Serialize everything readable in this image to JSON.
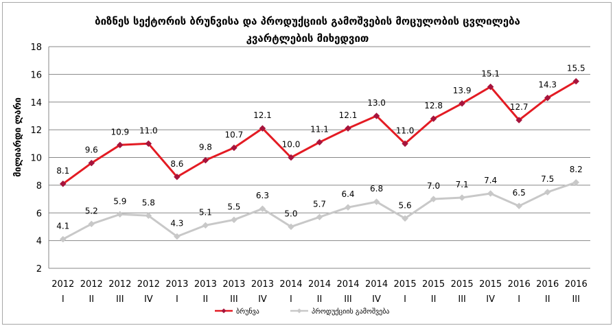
{
  "chart_data": {
    "type": "line",
    "title_line1": "ბიზნეს სექტორის ბრუნვისა და პროდუქციის გამოშვების მოცულობის ცვლილება",
    "title_line2": "კვარტლების მიხედვით",
    "ylabel": "მილიარდი ლარი",
    "xlabel": "",
    "ylim": [
      2,
      18
    ],
    "yticks": [
      2,
      4,
      6,
      8,
      10,
      12,
      14,
      16,
      18
    ],
    "grid": true,
    "legend_position": "bottom",
    "categories": [
      {
        "year": "2012",
        "quarter": "I"
      },
      {
        "year": "2012",
        "quarter": "II"
      },
      {
        "year": "2012",
        "quarter": "III"
      },
      {
        "year": "2012",
        "quarter": "IV"
      },
      {
        "year": "2013",
        "quarter": "I"
      },
      {
        "year": "2013",
        "quarter": "II"
      },
      {
        "year": "2013",
        "quarter": "III"
      },
      {
        "year": "2013",
        "quarter": "IV"
      },
      {
        "year": "2014",
        "quarter": "I"
      },
      {
        "year": "2014",
        "quarter": "II"
      },
      {
        "year": "2014",
        "quarter": "III"
      },
      {
        "year": "2014",
        "quarter": "IV"
      },
      {
        "year": "2015",
        "quarter": "I"
      },
      {
        "year": "2015",
        "quarter": "II"
      },
      {
        "year": "2015",
        "quarter": "III"
      },
      {
        "year": "2015",
        "quarter": "IV"
      },
      {
        "year": "2016",
        "quarter": "I"
      },
      {
        "year": "2016",
        "quarter": "II"
      },
      {
        "year": "2016",
        "quarter": "III"
      }
    ],
    "series": [
      {
        "name": "ბრუნვა",
        "color": "#e31b23",
        "marker_color": "#a6143c",
        "marker": "diamond",
        "values": [
          8.1,
          9.6,
          10.9,
          11.0,
          8.6,
          9.8,
          10.7,
          12.1,
          10.0,
          11.1,
          12.1,
          13.0,
          11.0,
          12.8,
          13.9,
          15.1,
          12.7,
          14.3,
          15.5
        ],
        "labels": [
          "8.1",
          "9.6",
          "10.9",
          "11.0",
          "8.6",
          "9.8",
          "10.7",
          "12.1",
          "10.0",
          "11.1",
          "12.1",
          "13.0",
          "11.0",
          "12.8",
          "13.9",
          "15.1",
          "12.7",
          "14.3",
          "15.5"
        ]
      },
      {
        "name": "პროდუქციის გამოშვება",
        "color": "#c8c8c8",
        "marker_color": "#c8c8c8",
        "marker": "diamond",
        "values": [
          4.1,
          5.2,
          5.9,
          5.8,
          4.3,
          5.1,
          5.5,
          6.3,
          5.0,
          5.7,
          6.4,
          6.8,
          5.6,
          7.0,
          7.1,
          7.4,
          6.5,
          7.5,
          8.2
        ],
        "labels": [
          "4.1",
          "5.2",
          "5.9",
          "5.8",
          "4.3",
          "5.1",
          "5.5",
          "6.3",
          "5.0",
          "5.7",
          "6.4",
          "6.8",
          "5.6",
          "7.0",
          "7.1",
          "7.4",
          "6.5",
          "7.5",
          "8.2"
        ]
      }
    ]
  }
}
